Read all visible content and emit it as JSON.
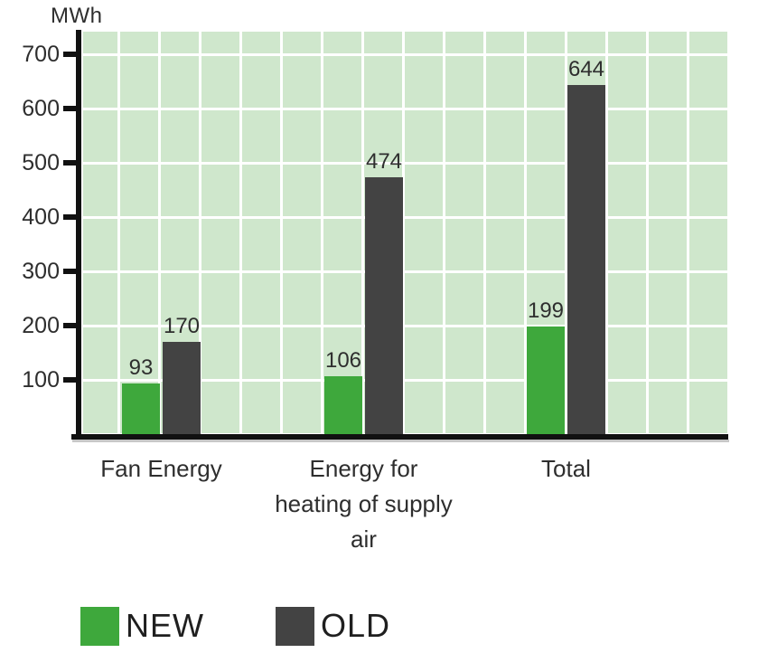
{
  "chart_data": {
    "type": "bar",
    "title": "",
    "ylabel": "MWh",
    "xlabel": "",
    "categories": [
      "Fan Energy",
      "Energy for heating of supply air",
      "Total"
    ],
    "series": [
      {
        "name": "NEW",
        "color": "#3ea83c",
        "values": [
          93,
          106,
          199
        ]
      },
      {
        "name": "OLD",
        "color": "#434343",
        "values": [
          170,
          474,
          644
        ]
      }
    ],
    "value_labels": [
      [
        "93",
        "106",
        "199"
      ],
      [
        "170",
        "474",
        "644"
      ]
    ],
    "yticks": [
      100,
      200,
      300,
      400,
      500,
      600,
      700
    ],
    "ylim": [
      0,
      745
    ],
    "ytick_step": 100,
    "grid": true,
    "legend_position": "bottom-left",
    "colors": {
      "plot_background": "#cfe7cc",
      "gridline": "#ffffff",
      "axis": "#111111",
      "text": "#2e2e2e",
      "new_green": "#3ea83c",
      "old_gray": "#434343"
    }
  }
}
